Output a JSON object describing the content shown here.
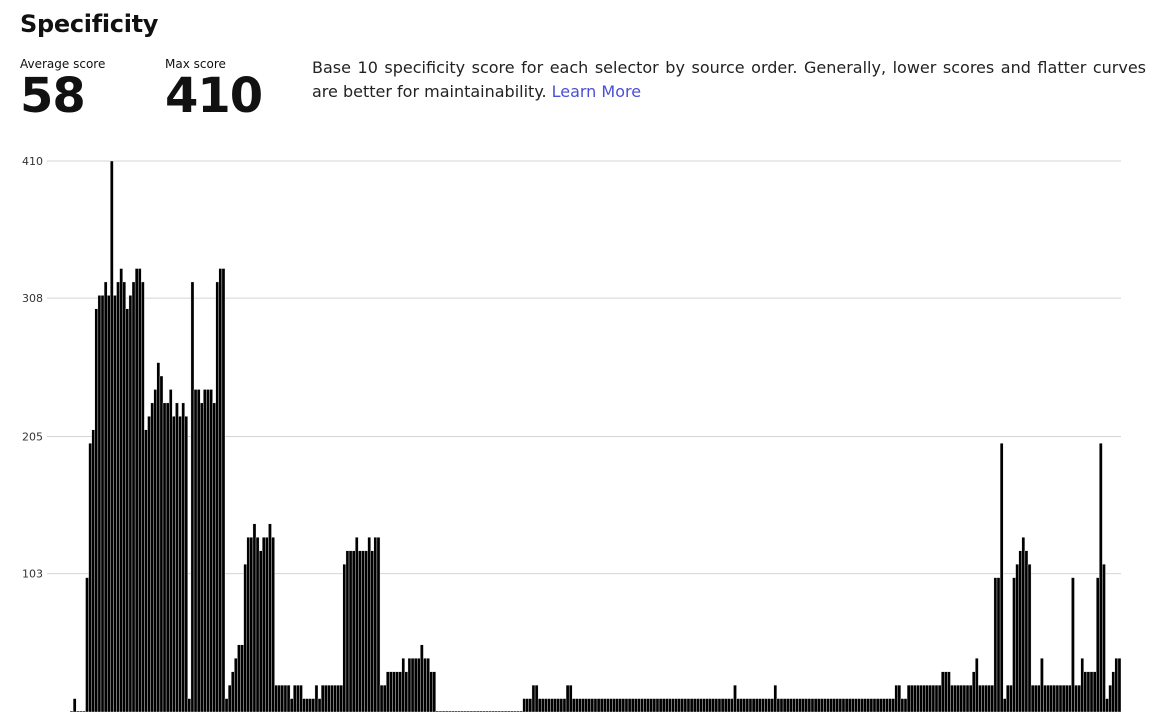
{
  "header": {
    "title": "Specificity",
    "average_label": "Average score",
    "average_value": "58",
    "max_label": "Max score",
    "max_value": "410",
    "description": "Base 10 specificity score for each selector by source order. Generally, lower scores and flatter curves are better for maintainability.",
    "learn_more": "Learn More"
  },
  "chart_data": {
    "type": "bar",
    "title": "",
    "xlabel": "",
    "ylabel": "",
    "ylim": [
      0,
      410
    ],
    "yticks": [
      "103",
      "205",
      "308",
      "410"
    ],
    "grid": true,
    "values": [
      0,
      10,
      0,
      0,
      0,
      100,
      200,
      210,
      300,
      310,
      310,
      320,
      310,
      410,
      310,
      320,
      330,
      320,
      300,
      310,
      320,
      330,
      330,
      320,
      210,
      220,
      230,
      240,
      260,
      250,
      230,
      230,
      240,
      220,
      230,
      220,
      230,
      220,
      10,
      320,
      240,
      240,
      230,
      240,
      240,
      240,
      230,
      320,
      330,
      330,
      10,
      20,
      30,
      40,
      50,
      50,
      110,
      130,
      130,
      140,
      130,
      120,
      130,
      130,
      140,
      130,
      20,
      20,
      20,
      20,
      20,
      10,
      20,
      20,
      20,
      10,
      10,
      10,
      10,
      20,
      10,
      20,
      20,
      20,
      20,
      20,
      20,
      20,
      110,
      120,
      120,
      120,
      130,
      120,
      120,
      120,
      130,
      120,
      130,
      130,
      20,
      20,
      30,
      30,
      30,
      30,
      30,
      40,
      30,
      40,
      40,
      40,
      40,
      50,
      40,
      40,
      30,
      30,
      0,
      0,
      0,
      0,
      0,
      0,
      0,
      0,
      0,
      0,
      0,
      0,
      0,
      0,
      0,
      0,
      0,
      0,
      0,
      0,
      0,
      0,
      0,
      0,
      0,
      0,
      0,
      0,
      10,
      10,
      10,
      20,
      20,
      10,
      10,
      10,
      10,
      10,
      10,
      10,
      10,
      10,
      20,
      20,
      10,
      10,
      10,
      10,
      10,
      10,
      10,
      10,
      10,
      10,
      10,
      10,
      10,
      10,
      10,
      10,
      10,
      10,
      10,
      10,
      10,
      10,
      10,
      10,
      10,
      10,
      10,
      10,
      10,
      10,
      10,
      10,
      10,
      10,
      10,
      10,
      10,
      10,
      10,
      10,
      10,
      10,
      10,
      10,
      10,
      10,
      10,
      10,
      10,
      10,
      10,
      10,
      20,
      10,
      10,
      10,
      10,
      10,
      10,
      10,
      10,
      10,
      10,
      10,
      10,
      20,
      10,
      10,
      10,
      10,
      10,
      10,
      10,
      10,
      10,
      10,
      10,
      10,
      10,
      10,
      10,
      10,
      10,
      10,
      10,
      10,
      10,
      10,
      10,
      10,
      10,
      10,
      10,
      10,
      10,
      10,
      10,
      10,
      10,
      10,
      10,
      10,
      10,
      10,
      20,
      20,
      10,
      10,
      20,
      20,
      20,
      20,
      20,
      20,
      20,
      20,
      20,
      20,
      20,
      30,
      30,
      30,
      20,
      20,
      20,
      20,
      20,
      20,
      20,
      30,
      40,
      20,
      20,
      20,
      20,
      20,
      100,
      100,
      200,
      10,
      20,
      20,
      100,
      110,
      120,
      130,
      120,
      110,
      20,
      20,
      20,
      40,
      20,
      20,
      20,
      20,
      20,
      20,
      20,
      20,
      20,
      100,
      20,
      20,
      40,
      30,
      30,
      30,
      30,
      100,
      200,
      110,
      10,
      20,
      30,
      40,
      40
    ]
  }
}
